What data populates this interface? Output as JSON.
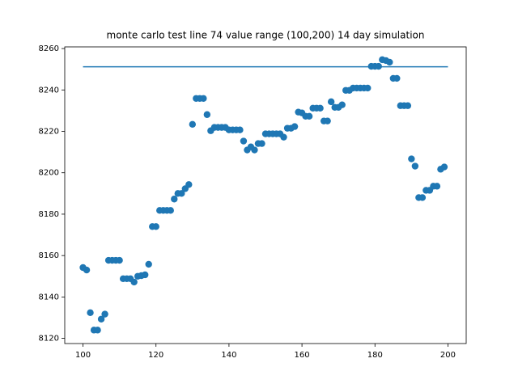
{
  "chart_data": {
    "type": "scatter",
    "title": "monte carlo test line 74 value range (100,200) 14 day simulation",
    "xlim": [
      95,
      205
    ],
    "xticks": [
      100,
      120,
      140,
      160,
      180,
      200
    ],
    "ylim": [
      8117.5,
      8260.8
    ],
    "yticks": [
      8120,
      8140,
      8160,
      8180,
      8200,
      8220,
      8240,
      8260
    ],
    "series": [
      {
        "kind": "line",
        "color": "#1f77b4",
        "x": [
          100,
          200
        ],
        "values": [
          8251.2,
          8251.2
        ]
      },
      {
        "kind": "scatter",
        "color": "#1f77b4",
        "x": [
          100,
          101,
          102,
          103,
          104,
          105,
          106,
          107,
          108,
          109,
          110,
          111,
          112,
          113,
          114,
          115,
          116,
          117,
          118,
          119,
          120,
          121,
          122,
          123,
          124,
          125,
          126,
          127,
          128,
          129,
          130,
          131,
          132,
          133,
          134,
          135,
          136,
          137,
          138,
          139,
          140,
          141,
          142,
          143,
          144,
          145,
          146,
          147,
          148,
          149,
          150,
          151,
          152,
          153,
          154,
          155,
          156,
          157,
          158,
          159,
          160,
          161,
          162,
          163,
          164,
          165,
          166,
          167,
          168,
          169,
          170,
          171,
          172,
          173,
          174,
          175,
          176,
          177,
          178,
          179,
          180,
          181,
          182,
          183,
          184,
          185,
          186,
          187,
          188,
          189,
          190,
          191,
          192,
          193,
          194,
          195,
          196,
          197,
          198,
          199
        ],
        "values": [
          8154.2,
          8153,
          8132.4,
          8124,
          8124,
          8129.3,
          8131.7,
          8157.7,
          8157.7,
          8157.7,
          8157.7,
          8148.8,
          8148.8,
          8148.8,
          8147.2,
          8150,
          8150.3,
          8150.7,
          8155.8,
          8174,
          8174,
          8181.8,
          8181.8,
          8181.8,
          8181.8,
          8187.3,
          8190,
          8190,
          8192.3,
          8194.3,
          8223.4,
          8235.9,
          8235.9,
          8235.9,
          8228.1,
          8220.3,
          8221.9,
          8221.9,
          8221.9,
          8221.9,
          8220.7,
          8220.7,
          8220.7,
          8220.7,
          8215.3,
          8211,
          8212.5,
          8211,
          8214.1,
          8214.1,
          8218.8,
          8218.8,
          8218.8,
          8218.8,
          8218.8,
          8217.2,
          8221.5,
          8221.5,
          8222.3,
          8229.3,
          8228.9,
          8227.3,
          8227.3,
          8231.2,
          8231.2,
          8231.2,
          8225,
          8225,
          8234.3,
          8231.6,
          8231.6,
          8232.8,
          8239.8,
          8239.8,
          8240.9,
          8240.9,
          8240.9,
          8240.9,
          8240.9,
          8251.4,
          8251.4,
          8251.4,
          8254.6,
          8254.2,
          8253.4,
          8245.6,
          8245.6,
          8232.4,
          8232.4,
          8232.4,
          8206.7,
          8203.2,
          8188,
          8188,
          8191.5,
          8191.5,
          8193.5,
          8193.5,
          8201.7,
          8202.8
        ]
      }
    ]
  }
}
